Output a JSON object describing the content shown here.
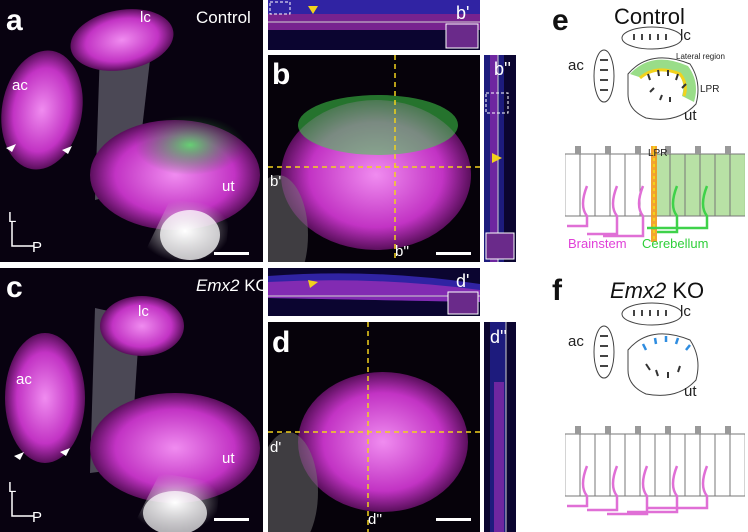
{
  "panels": {
    "a": {
      "letter": "a",
      "title": "Control",
      "ac": "ac",
      "lc": "lc",
      "ut": "ut",
      "axis_l": "L",
      "axis_p": "P"
    },
    "b": {
      "letter": "b",
      "cross_h": "b'",
      "cross_v": "b''"
    },
    "b_prime": {
      "letter": "b'"
    },
    "b_dprime": {
      "letter": "b''"
    },
    "c": {
      "letter": "c",
      "title_italic": "Emx2",
      "title_rest": " KO",
      "ac": "ac",
      "lc": "lc",
      "ut": "ut",
      "axis_l": "L",
      "axis_p": "P"
    },
    "d": {
      "letter": "d",
      "cross_h": "d'",
      "cross_v": "d''"
    },
    "d_prime": {
      "letter": "d'"
    },
    "d_dprime": {
      "letter": "d''"
    },
    "e": {
      "letter": "e",
      "title": "Control",
      "lc": "lc",
      "ac": "ac",
      "ut": "ut",
      "lateral": "Lateral region",
      "lpr": "LPR",
      "lpr2": "LPR",
      "brainstem": "Brainstem",
      "cerebellum": "Cerebellum"
    },
    "f": {
      "letter": "f",
      "title_italic": "Emx2",
      "title_rest": " KO",
      "lc": "lc",
      "ac": "ac",
      "ut": "ut"
    }
  },
  "colors": {
    "magenta": "#e24be0",
    "green": "#3fd24a",
    "yellow": "#f2d21c",
    "blue": "#2f8de0",
    "orange": "#f39a1a",
    "pink": "#e06fd6",
    "brainstem_text": "#e040d8",
    "cerebellum_text": "#2fcf3a"
  }
}
